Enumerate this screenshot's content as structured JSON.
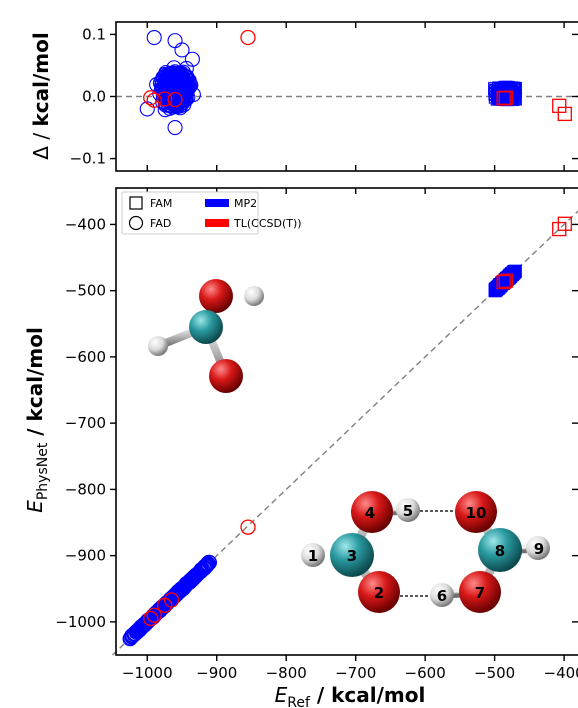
{
  "colors": {
    "mp2": "#0000ff",
    "tl": "#ff0000",
    "diagonal": "#808080",
    "oxygen": "#cc1010",
    "carbon": "#2a9aa0",
    "hydrogen": "#e6e6e6"
  },
  "chart_data": [
    {
      "type": "scatter",
      "panel": "top",
      "ylabel": "Δ / kcal/mol",
      "ylim": [
        -0.12,
        0.12
      ],
      "yticks": [
        0.1,
        0.0,
        -0.1
      ],
      "ytick_labels": [
        "0.1",
        "0.0",
        "−0.1"
      ],
      "reference_line": {
        "y": 0.0,
        "style": "dashed"
      },
      "series": [
        {
          "name": "MP2",
          "molecule": "FAD",
          "marker": "circle",
          "color": "#0000ff",
          "cluster": {
            "x_range": [
              -1010,
              -910
            ],
            "y_range": [
              -0.05,
              0.08
            ]
          },
          "points": [
            [
              -990,
              0.095
            ],
            [
              -960,
              0.09
            ],
            [
              -950,
              0.075
            ],
            [
              -1000,
              -0.02
            ],
            [
              -960,
              -0.05
            ],
            [
              -935,
              0.06
            ]
          ]
        },
        {
          "name": "MP2",
          "molecule": "FAM",
          "marker": "square",
          "color": "#0000ff",
          "cluster": {
            "x_range": [
              -500,
              -470
            ],
            "y_range": [
              -0.005,
              0.015
            ]
          }
        },
        {
          "name": "TL(CCSD(T))",
          "molecule": "FAD",
          "marker": "circle",
          "color": "#ff0000",
          "points": [
            [
              -995,
              -0.002
            ],
            [
              -990,
              -0.006
            ],
            [
              -975,
              -0.004
            ],
            [
              -960,
              -0.005
            ],
            [
              -855,
              0.095
            ]
          ]
        },
        {
          "name": "TL(CCSD(T))",
          "molecule": "FAM",
          "marker": "square",
          "color": "#ff0000",
          "points": [
            [
              -487,
              -0.003
            ],
            [
              -484,
              -0.002
            ],
            [
              -407,
              -0.015
            ],
            [
              -399,
              -0.028
            ]
          ]
        }
      ]
    },
    {
      "type": "scatter",
      "panel": "bottom",
      "xlabel": "E_Ref / kcal/mol",
      "ylabel": "E_PhysNet / kcal/mol",
      "xlim": [
        -1045,
        -380
      ],
      "ylim": [
        -1050,
        -345
      ],
      "xticks": [
        -1000,
        -900,
        -800,
        -700,
        -600,
        -500,
        -400
      ],
      "xtick_labels": [
        "−1000",
        "−900",
        "−800",
        "−700",
        "−600",
        "−500",
        "−400"
      ],
      "yticks": [
        -400,
        -500,
        -600,
        -700,
        -800,
        -900,
        -1000
      ],
      "ytick_labels": [
        "−400",
        "−500",
        "−600",
        "−700",
        "−800",
        "−900",
        "−1000"
      ],
      "diagonal": true,
      "legend": {
        "placement": "top-left",
        "entries": [
          {
            "label": "FAM",
            "kind": "marker",
            "marker": "square"
          },
          {
            "label": "FAD",
            "kind": "marker",
            "marker": "circle"
          },
          {
            "label": "MP2",
            "kind": "patch",
            "color": "#0000ff"
          },
          {
            "label": "TL(CCSD(T))",
            "kind": "patch",
            "color": "#ff0000"
          }
        ]
      },
      "series": [
        {
          "name": "MP2",
          "molecule": "FAD",
          "marker": "circle",
          "color": "#0000ff",
          "band": {
            "x_from": -1025,
            "x_to": -910
          }
        },
        {
          "name": "MP2",
          "molecule": "FAM",
          "marker": "square",
          "color": "#0000ff",
          "band": {
            "x_from": -500,
            "x_to": -470
          }
        },
        {
          "name": "TL(CCSD(T))",
          "molecule": "FAD",
          "marker": "circle",
          "color": "#ff0000",
          "points": [
            [
              -995,
              -995
            ],
            [
              -990,
              -990
            ],
            [
              -975,
              -975
            ],
            [
              -965,
              -967
            ],
            [
              -855,
              -857
            ]
          ]
        },
        {
          "name": "TL(CCSD(T))",
          "molecule": "FAM",
          "marker": "square",
          "color": "#ff0000",
          "points": [
            [
              -487,
              -487
            ],
            [
              -484,
              -485
            ],
            [
              -407,
              -407
            ],
            [
              -399,
              -399
            ]
          ]
        }
      ]
    }
  ],
  "figure_text": {
    "top_ylabel_prefix": "Δ / ",
    "top_ylabel_unit": "kcal/mol",
    "bottom_ylabel_sym": "E",
    "bottom_ylabel_sub": "PhysNet",
    "bottom_ylabel_unit": " / kcal/mol",
    "xlabel_sym": "E",
    "xlabel_sub": "Ref",
    "xlabel_unit": " / kcal/mol"
  },
  "atom_labels": [
    "1",
    "2",
    "3",
    "4",
    "5",
    "6",
    "7",
    "8",
    "9",
    "10"
  ]
}
